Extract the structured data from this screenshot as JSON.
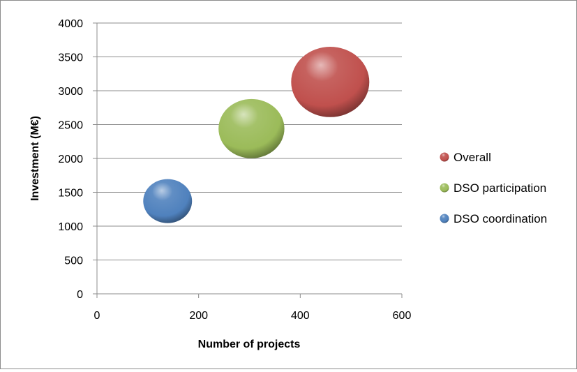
{
  "chart_data": {
    "type": "bubble",
    "xlabel": "Number of projects",
    "ylabel": "Investment (M€)",
    "xlim": [
      0,
      600
    ],
    "ylim": [
      0,
      4000
    ],
    "x_ticks": [
      0,
      200,
      400,
      600
    ],
    "y_ticks": [
      0,
      500,
      1000,
      1500,
      2000,
      2500,
      3000,
      3500,
      4000
    ],
    "grid": "horizontal",
    "legend_position": "right",
    "series": [
      {
        "name": "Overall",
        "x": 459,
        "y": 3130,
        "size": 1.0,
        "color": "#c0504d"
      },
      {
        "name": "DSO participation",
        "x": 304,
        "y": 2440,
        "size": 0.71,
        "color": "#9bbb59"
      },
      {
        "name": "DSO coordination",
        "x": 139,
        "y": 1370,
        "size": 0.39,
        "color": "#4f81bd"
      }
    ]
  }
}
